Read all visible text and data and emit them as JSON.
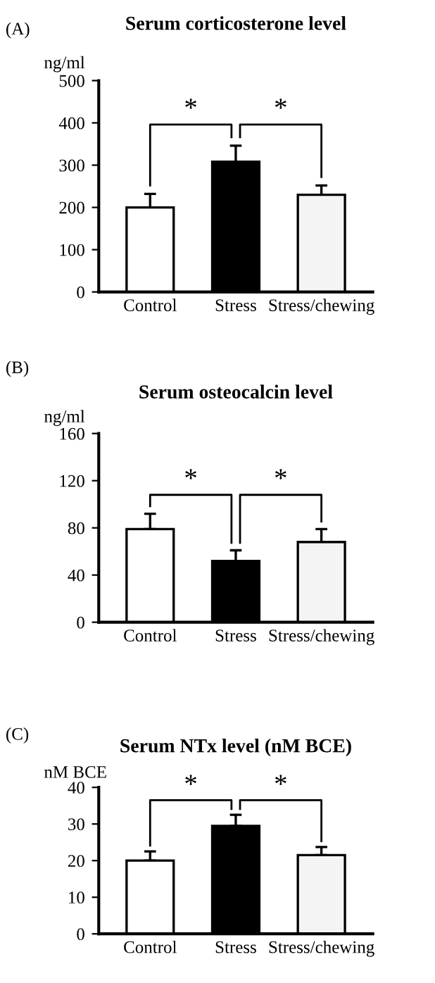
{
  "chart_data": [
    {
      "type": "bar",
      "title": "Serum corticosterone level",
      "ylabel": "ng/ml",
      "annotations": [
        "(A)",
        "*",
        "*"
      ],
      "categories": [
        "Control",
        "Stress",
        "Stress/chewing"
      ],
      "values": [
        200,
        308,
        230
      ],
      "errors": [
        32,
        38,
        22
      ],
      "colors": [
        "#ffffff",
        "#000000",
        "#f4f4f4"
      ],
      "ylim": [
        0,
        500
      ],
      "yticks": [
        0,
        100,
        200,
        300,
        400,
        500
      ],
      "grid": false
    },
    {
      "type": "bar",
      "title": "Serum osteocalcin level",
      "ylabel": "ng/ml",
      "annotations": [
        "(B)",
        "*",
        "*"
      ],
      "categories": [
        "Control",
        "Stress",
        "Stress/chewing"
      ],
      "values": [
        79,
        52,
        68
      ],
      "errors": [
        13,
        9,
        11
      ],
      "colors": [
        "#ffffff",
        "#000000",
        "#f4f4f4"
      ],
      "ylim": [
        0,
        160
      ],
      "yticks": [
        0,
        40,
        80,
        120,
        160
      ],
      "grid": false
    },
    {
      "type": "bar",
      "title": "Serum NTx level (nM BCE)",
      "ylabel": "nM BCE",
      "annotations": [
        "(C)",
        "*",
        "*"
      ],
      "categories": [
        "Control",
        "Stress",
        "Stress/chewing"
      ],
      "values": [
        20,
        29.5,
        21.5
      ],
      "errors": [
        2.5,
        3,
        2.2
      ],
      "colors": [
        "#ffffff",
        "#000000",
        "#f4f4f4"
      ],
      "ylim": [
        0,
        40
      ],
      "yticks": [
        0,
        10,
        20,
        30,
        40
      ],
      "grid": false
    }
  ]
}
